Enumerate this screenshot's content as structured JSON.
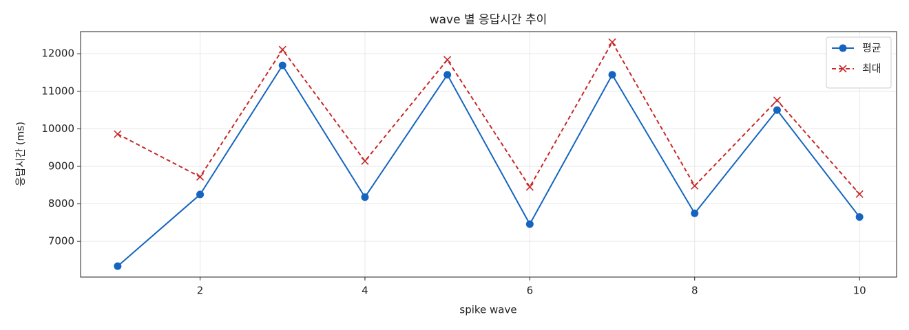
{
  "chart_data": {
    "type": "line",
    "title": "wave 별 응답시간 추이",
    "xlabel": "spike wave",
    "ylabel": "응답시간 (ms)",
    "x": [
      1,
      2,
      3,
      4,
      5,
      6,
      7,
      8,
      9,
      10
    ],
    "series": [
      {
        "name": "평균",
        "color": "#1565c0",
        "marker": "circle",
        "linestyle": "solid",
        "values": [
          6340,
          8250,
          11690,
          8180,
          11440,
          7460,
          11440,
          7750,
          10500,
          7650
        ]
      },
      {
        "name": "최대",
        "color": "#c62828",
        "marker": "x",
        "linestyle": "dashed",
        "values": [
          9860,
          8720,
          12110,
          9140,
          11840,
          8450,
          12310,
          8480,
          10760,
          8260
        ]
      }
    ],
    "xlim": [
      0.55,
      10.45
    ],
    "xticks": [
      2,
      4,
      6,
      8,
      10
    ],
    "ylim": [
      6050,
      12590
    ],
    "yticks": [
      7000,
      8000,
      9000,
      10000,
      11000,
      12000
    ],
    "grid": true,
    "legend": "upper right"
  }
}
